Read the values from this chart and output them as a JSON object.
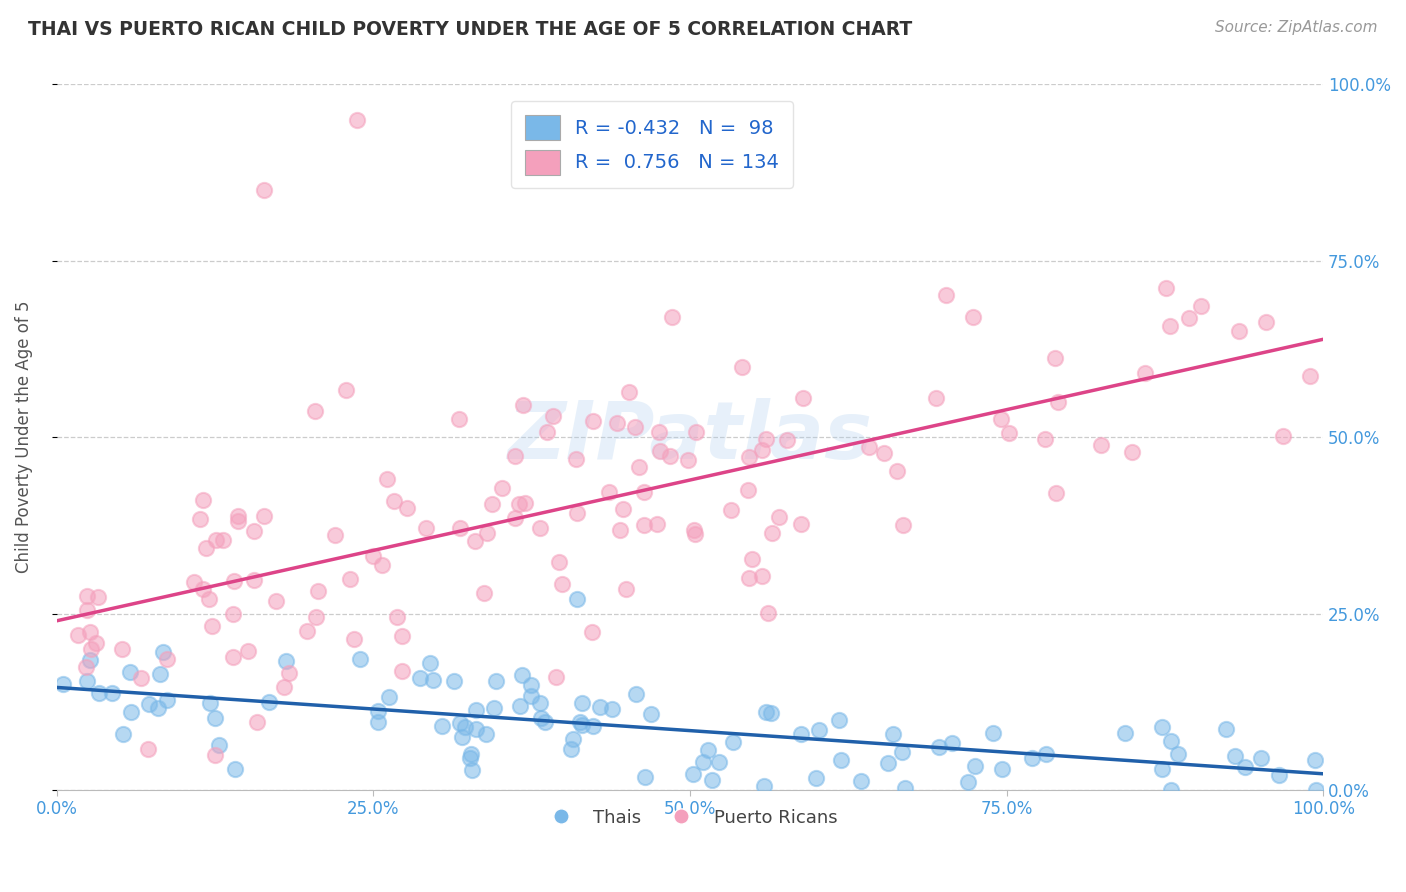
{
  "title": "THAI VS PUERTO RICAN CHILD POVERTY UNDER THE AGE OF 5 CORRELATION CHART",
  "source_text": "Source: ZipAtlas.com",
  "ylabel": "Child Poverty Under the Age of 5",
  "watermark": "ZIPatlas",
  "blue_R": -0.432,
  "blue_N": 98,
  "pink_R": 0.756,
  "pink_N": 134,
  "blue_scatter_color": "#7ab8e8",
  "pink_scatter_color": "#f4a0bc",
  "blue_line_color": "#2060aa",
  "pink_line_color": "#dd4488",
  "bg_color": "#ffffff",
  "grid_color": "#cccccc",
  "xmin": 0.0,
  "xmax": 1.0,
  "ymin": 0.0,
  "ymax": 1.0,
  "tick_label_color": "#4499dd",
  "title_color": "#333333",
  "source_color": "#999999",
  "ylabel_color": "#555555",
  "legend_text_color": "#2266cc"
}
